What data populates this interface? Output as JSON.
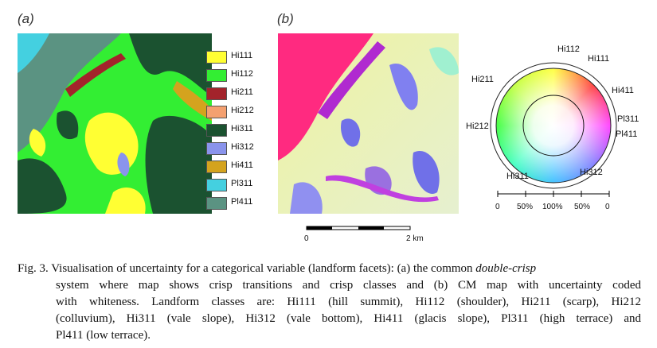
{
  "panels": {
    "a": "(a)",
    "b": "(b)"
  },
  "legend": [
    {
      "label": "Hi111",
      "color": "#ffff33"
    },
    {
      "label": "Hi112",
      "color": "#33ee33"
    },
    {
      "label": "Hi211",
      "color": "#a3232b"
    },
    {
      "label": "Hi212",
      "color": "#f4a070"
    },
    {
      "label": "Hi311",
      "color": "#1b5230"
    },
    {
      "label": "Hi312",
      "color": "#8a94ec"
    },
    {
      "label": "Hi411",
      "color": "#d4a31e"
    },
    {
      "label": "Pl311",
      "color": "#44d0e0"
    },
    {
      "label": "Pl411",
      "color": "#5b9382"
    }
  ],
  "wheel_labels": [
    "Hi112",
    "Hi111",
    "Hi411",
    "Pl311",
    "Pl411",
    "Hi312",
    "Hi311",
    "Hi212",
    "Hi211"
  ],
  "whiteness_scale": [
    "0",
    "50%",
    "100%",
    "50%",
    "0"
  ],
  "scale_bar": [
    "0",
    "2 km"
  ],
  "caption": {
    "line0": [
      "Fig. 3. Visualisation of uncertainty for a categorical variable (landform facets): (a) the common ",
      "double-crisp"
    ],
    "lines": [
      "system where map shows crisp transitions and crisp classes and (b) CM map with uncertainty coded",
      "with whiteness. Landform classes are: Hi111 (hill summit), Hi112 (shoulder), Hi211 (scarp), Hi212",
      "(colluvium), Hi311 (vale slope), Hi312 (vale bottom), Hi411 (glacis slope), Pl311 (high terrace) and",
      "Pl411 (low terrace)."
    ]
  }
}
